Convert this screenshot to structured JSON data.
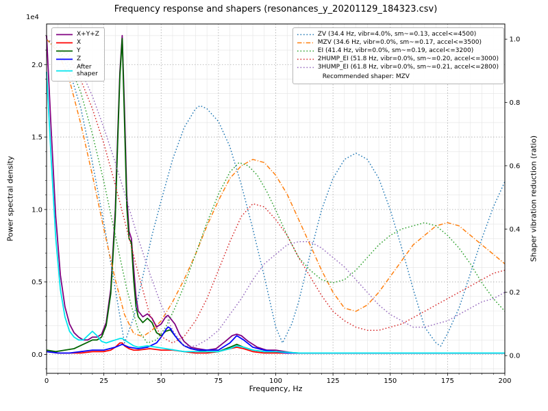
{
  "figure": {
    "title": "Frequency response and shapers (resonances_y_20201129_184323.csv)",
    "xlabel": "Frequency, Hz",
    "ylabel_left": "Power spectral density",
    "ylabel_right": "Shaper vibration reduction (ratio)",
    "offset_text": "1e4",
    "background": "#ffffff",
    "grid_major_color": "#a8a8a8",
    "grid_minor_color": "#e3e3e3"
  },
  "chart_data": {
    "type": "line",
    "title": "Frequency response and shapers (resonances_y_20201129_184323.csv)",
    "xlabel": "Frequency, Hz",
    "ylabel": "Power spectral density",
    "ylabel_right": "Shaper vibration reduction (ratio)",
    "grid": true,
    "xlim": [
      0,
      200
    ],
    "x_ticks": [
      "0",
      "25",
      "50",
      "75",
      "100",
      "125",
      "150",
      "175",
      "200"
    ],
    "x_minor_step": 5,
    "ylim_left": [
      -0.13,
      2.28
    ],
    "y_unit_left": "1e4",
    "y_ticks_left": [
      "0.0",
      "0.5",
      "1.0",
      "1.5",
      "2.0"
    ],
    "y_minor_step_left": 0.1,
    "ylim_right": [
      -0.056,
      1.048
    ],
    "y_ticks_right": [
      "0.0",
      "0.2",
      "0.4",
      "0.6",
      "0.8",
      "1.0"
    ],
    "legend_note": "Recommended shaper: MZV",
    "psd_series": [
      {
        "name": "xyz",
        "label": "X+Y+Z",
        "color": "#800080",
        "dash": "solid",
        "axis": "left",
        "x": [
          0,
          2,
          4,
          6,
          8,
          10,
          12,
          14,
          16,
          18,
          20,
          22,
          24,
          26,
          28,
          30,
          31,
          32,
          33,
          34,
          35,
          36,
          37,
          38,
          39,
          40,
          42,
          44,
          46,
          48,
          50,
          52,
          53,
          54,
          56,
          58,
          60,
          63,
          66,
          70,
          74,
          78,
          81,
          83,
          85,
          88,
          92,
          96,
          100,
          104,
          108,
          112,
          120,
          140,
          160,
          180,
          200
        ],
        "y": [
          2.2,
          1.55,
          0.95,
          0.55,
          0.33,
          0.21,
          0.15,
          0.12,
          0.1,
          0.1,
          0.12,
          0.12,
          0.14,
          0.22,
          0.45,
          1.0,
          1.5,
          1.95,
          2.2,
          1.7,
          1.1,
          0.85,
          0.8,
          0.6,
          0.4,
          0.3,
          0.26,
          0.28,
          0.25,
          0.19,
          0.21,
          0.26,
          0.27,
          0.25,
          0.21,
          0.14,
          0.09,
          0.05,
          0.04,
          0.03,
          0.04,
          0.09,
          0.13,
          0.14,
          0.13,
          0.09,
          0.05,
          0.03,
          0.03,
          0.02,
          0.01,
          0.01,
          0.01,
          0.01,
          0.01,
          0.01,
          0.01
        ]
      },
      {
        "name": "x",
        "label": "X",
        "color": "#ff0000",
        "dash": "solid",
        "axis": "left",
        "x": [
          0,
          5,
          10,
          15,
          20,
          25,
          28,
          30,
          32,
          33,
          34,
          36,
          38,
          40,
          45,
          50,
          55,
          60,
          65,
          70,
          75,
          80,
          83,
          86,
          90,
          95,
          100,
          110,
          120,
          140,
          160,
          180,
          200
        ],
        "y": [
          0.02,
          0.01,
          0.01,
          0.01,
          0.02,
          0.02,
          0.03,
          0.05,
          0.08,
          0.08,
          0.06,
          0.04,
          0.03,
          0.03,
          0.04,
          0.03,
          0.03,
          0.02,
          0.01,
          0.01,
          0.02,
          0.04,
          0.05,
          0.04,
          0.02,
          0.01,
          0.01,
          0.01,
          0.01,
          0.01,
          0.01,
          0.01,
          0.01
        ]
      },
      {
        "name": "y",
        "label": "Y",
        "color": "#006400",
        "dash": "solid",
        "axis": "left",
        "x": [
          0,
          4,
          8,
          12,
          16,
          20,
          22,
          24,
          26,
          28,
          30,
          31,
          32,
          33,
          34,
          35,
          36,
          37,
          38,
          39,
          40,
          42,
          44,
          46,
          48,
          50,
          52,
          54,
          56,
          58,
          60,
          63,
          66,
          70,
          75,
          80,
          83,
          86,
          90,
          95,
          100,
          110,
          120,
          140,
          160,
          180,
          200
        ],
        "y": [
          0.03,
          0.02,
          0.03,
          0.04,
          0.07,
          0.1,
          0.1,
          0.12,
          0.2,
          0.42,
          0.95,
          1.45,
          1.92,
          2.18,
          1.62,
          1.02,
          0.8,
          0.77,
          0.52,
          0.33,
          0.26,
          0.22,
          0.25,
          0.22,
          0.15,
          0.13,
          0.16,
          0.17,
          0.13,
          0.09,
          0.06,
          0.04,
          0.03,
          0.02,
          0.02,
          0.05,
          0.07,
          0.05,
          0.03,
          0.02,
          0.02,
          0.01,
          0.01,
          0.01,
          0.01,
          0.01,
          0.01
        ]
      },
      {
        "name": "z",
        "label": "Z",
        "color": "#0000ff",
        "dash": "solid",
        "axis": "left",
        "x": [
          0,
          5,
          10,
          15,
          20,
          25,
          30,
          33,
          36,
          40,
          44,
          48,
          50,
          52,
          53,
          54,
          56,
          58,
          60,
          63,
          66,
          70,
          75,
          80,
          83,
          86,
          90,
          95,
          100,
          105,
          110,
          120,
          140,
          160,
          180,
          200
        ],
        "y": [
          0.02,
          0.01,
          0.01,
          0.02,
          0.03,
          0.03,
          0.05,
          0.07,
          0.05,
          0.04,
          0.05,
          0.08,
          0.12,
          0.17,
          0.19,
          0.18,
          0.13,
          0.09,
          0.06,
          0.04,
          0.03,
          0.03,
          0.03,
          0.08,
          0.13,
          0.1,
          0.05,
          0.03,
          0.02,
          0.01,
          0.01,
          0.01,
          0.01,
          0.01,
          0.01,
          0.01
        ]
      },
      {
        "name": "after_shaper",
        "label": "After\nshaper",
        "color": "#00e5ee",
        "dash": "solid",
        "axis": "left",
        "x": [
          0,
          2,
          4,
          6,
          8,
          10,
          12,
          14,
          16,
          18,
          20,
          22,
          24,
          26,
          28,
          30,
          32,
          33,
          34,
          36,
          38,
          40,
          44,
          48,
          52,
          56,
          60,
          65,
          70,
          75,
          80,
          83,
          86,
          90,
          95,
          100,
          110,
          120,
          140,
          160,
          180,
          200
        ],
        "y": [
          1.95,
          1.35,
          0.8,
          0.45,
          0.26,
          0.16,
          0.12,
          0.1,
          0.1,
          0.13,
          0.16,
          0.13,
          0.09,
          0.08,
          0.09,
          0.1,
          0.11,
          0.11,
          0.1,
          0.08,
          0.06,
          0.05,
          0.06,
          0.05,
          0.04,
          0.03,
          0.02,
          0.02,
          0.02,
          0.02,
          0.04,
          0.06,
          0.05,
          0.03,
          0.02,
          0.02,
          0.01,
          0.01,
          0.01,
          0.01,
          0.01,
          0.01
        ]
      }
    ],
    "shaper_series": [
      {
        "name": "zv",
        "label": "ZV (34.4 Hz, vibr=4.0%, sm~=0.13, accel<=4500)",
        "color": "#1f77b4",
        "dash": "dot",
        "axis": "right",
        "x": [
          0,
          5,
          10,
          15,
          20,
          25,
          30,
          34,
          38,
          42,
          46,
          50,
          55,
          60,
          65,
          67,
          70,
          75,
          80,
          85,
          90,
          95,
          100,
          103,
          107,
          110,
          115,
          120,
          125,
          130,
          135,
          140,
          145,
          150,
          155,
          160,
          165,
          170,
          172,
          175,
          180,
          185,
          190,
          195,
          200
        ],
        "y": [
          1.0,
          0.97,
          0.9,
          0.78,
          0.61,
          0.42,
          0.21,
          0.04,
          0.12,
          0.25,
          0.38,
          0.49,
          0.62,
          0.72,
          0.78,
          0.79,
          0.78,
          0.74,
          0.66,
          0.54,
          0.4,
          0.25,
          0.09,
          0.04,
          0.1,
          0.17,
          0.32,
          0.46,
          0.56,
          0.62,
          0.64,
          0.62,
          0.56,
          0.46,
          0.34,
          0.21,
          0.09,
          0.04,
          0.03,
          0.07,
          0.15,
          0.26,
          0.37,
          0.47,
          0.55
        ]
      },
      {
        "name": "mzv",
        "label": "MZV (34.6 Hz, vibr=0.0%, sm~=0.17, accel<=3500)",
        "color": "#ff7f0e",
        "dash": "dashdot",
        "axis": "right",
        "x": [
          0,
          5,
          10,
          15,
          20,
          25,
          30,
          34,
          38,
          42,
          46,
          50,
          55,
          60,
          65,
          70,
          75,
          80,
          85,
          90,
          95,
          100,
          105,
          110,
          115,
          120,
          125,
          130,
          135,
          140,
          145,
          150,
          155,
          160,
          165,
          170,
          175,
          180,
          185,
          190,
          195,
          200
        ],
        "y": [
          1.0,
          0.96,
          0.87,
          0.73,
          0.57,
          0.4,
          0.24,
          0.13,
          0.07,
          0.06,
          0.08,
          0.11,
          0.17,
          0.24,
          0.32,
          0.41,
          0.49,
          0.56,
          0.6,
          0.62,
          0.61,
          0.57,
          0.51,
          0.43,
          0.35,
          0.27,
          0.2,
          0.15,
          0.14,
          0.16,
          0.2,
          0.25,
          0.3,
          0.35,
          0.38,
          0.41,
          0.42,
          0.41,
          0.38,
          0.35,
          0.32,
          0.29
        ]
      },
      {
        "name": "ei",
        "label": "EI (41.4 Hz, vibr=0.0%, sm~=0.19, accel<=3200)",
        "color": "#2ca02c",
        "dash": "dot",
        "axis": "right",
        "x": [
          0,
          5,
          10,
          15,
          20,
          25,
          30,
          35,
          40,
          44,
          48,
          52,
          56,
          60,
          65,
          70,
          75,
          80,
          84,
          88,
          92,
          96,
          100,
          105,
          110,
          115,
          120,
          125,
          130,
          135,
          140,
          145,
          150,
          155,
          160,
          165,
          170,
          175,
          180,
          185,
          190,
          195,
          200
        ],
        "y": [
          1.0,
          0.97,
          0.92,
          0.83,
          0.7,
          0.55,
          0.38,
          0.21,
          0.08,
          0.04,
          0.05,
          0.09,
          0.15,
          0.22,
          0.32,
          0.42,
          0.51,
          0.58,
          0.61,
          0.6,
          0.57,
          0.52,
          0.46,
          0.38,
          0.31,
          0.27,
          0.24,
          0.23,
          0.24,
          0.27,
          0.31,
          0.35,
          0.38,
          0.4,
          0.41,
          0.42,
          0.41,
          0.38,
          0.34,
          0.29,
          0.23,
          0.18,
          0.14
        ]
      },
      {
        "name": "2hump_ei",
        "label": "2HUMP_EI (51.8 Hz, vibr=0.0%, sm~=0.20, accel<=3000)",
        "color": "#d62728",
        "dash": "dot",
        "axis": "right",
        "x": [
          0,
          5,
          10,
          15,
          20,
          25,
          30,
          35,
          40,
          45,
          50,
          55,
          60,
          65,
          70,
          75,
          80,
          85,
          90,
          95,
          100,
          105,
          110,
          115,
          120,
          125,
          130,
          135,
          140,
          145,
          150,
          155,
          160,
          165,
          170,
          175,
          180,
          185,
          190,
          195,
          200
        ],
        "y": [
          1.0,
          0.98,
          0.94,
          0.87,
          0.78,
          0.67,
          0.54,
          0.4,
          0.26,
          0.13,
          0.06,
          0.04,
          0.06,
          0.11,
          0.18,
          0.27,
          0.36,
          0.44,
          0.48,
          0.47,
          0.43,
          0.38,
          0.31,
          0.25,
          0.19,
          0.14,
          0.11,
          0.09,
          0.08,
          0.08,
          0.09,
          0.1,
          0.12,
          0.14,
          0.16,
          0.18,
          0.2,
          0.22,
          0.24,
          0.26,
          0.27
        ]
      },
      {
        "name": "3hump_ei",
        "label": "3HUMP_EI (61.8 Hz, vibr=0.0%, sm~=0.21, accel<=2800)",
        "color": "#9467bd",
        "dash": "dot",
        "axis": "right",
        "x": [
          0,
          5,
          10,
          15,
          20,
          25,
          30,
          35,
          40,
          45,
          50,
          55,
          60,
          65,
          70,
          75,
          80,
          85,
          90,
          95,
          100,
          105,
          110,
          115,
          120,
          125,
          130,
          135,
          140,
          145,
          150,
          155,
          160,
          165,
          170,
          175,
          180,
          185,
          190,
          195,
          200
        ],
        "y": [
          1.0,
          0.98,
          0.95,
          0.9,
          0.82,
          0.72,
          0.61,
          0.49,
          0.37,
          0.26,
          0.16,
          0.08,
          0.03,
          0.03,
          0.05,
          0.08,
          0.13,
          0.18,
          0.24,
          0.29,
          0.32,
          0.35,
          0.36,
          0.36,
          0.34,
          0.31,
          0.28,
          0.24,
          0.2,
          0.16,
          0.13,
          0.11,
          0.09,
          0.09,
          0.1,
          0.11,
          0.13,
          0.15,
          0.17,
          0.18,
          0.2
        ]
      }
    ]
  }
}
